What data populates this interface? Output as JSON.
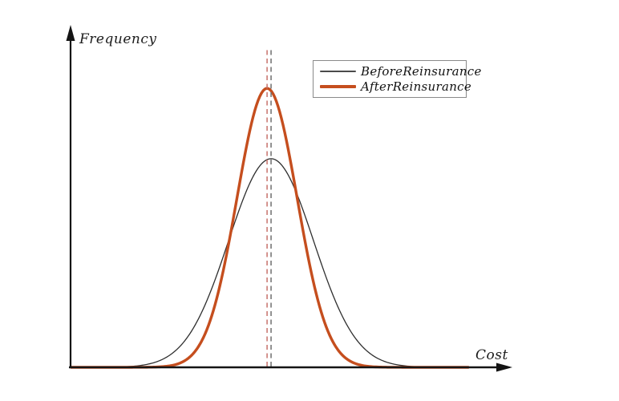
{
  "chart_data": {
    "type": "line",
    "title": "",
    "xlabel": "Cost",
    "ylabel": "Frequency",
    "x_axis": {
      "ticks": [],
      "arrow": true,
      "range": [
        0,
        1
      ]
    },
    "y_axis": {
      "ticks": [],
      "arrow": true,
      "range": [
        0,
        1
      ]
    },
    "axis_color": "#141414",
    "background": "#ffffff",
    "series": [
      {
        "name": "BeforeReinsurance",
        "shape": "gaussian",
        "mean": 0.453,
        "sigma": 0.096,
        "peak": 0.605,
        "color": "#2e2e2e",
        "line_width": 1.3
      },
      {
        "name": "AfterReinsurance",
        "shape": "gaussian",
        "mean": 0.444,
        "sigma": 0.068,
        "peak": 0.809,
        "color": "#c54e1e",
        "line_width": 3.4
      }
    ],
    "mean_markers": [
      {
        "x": 0.444,
        "color": "#c7716b",
        "style": "dashed",
        "top": 0.921
      },
      {
        "x": 0.453,
        "color": "#6e6e6e",
        "style": "dashed",
        "top": 0.921
      }
    ],
    "legend": {
      "position": "upper-right",
      "entries": [
        {
          "label": "BeforeReinsurance",
          "color": "#4a4a4a",
          "line_width": 1.5
        },
        {
          "label": "AfterReinsurance",
          "color": "#c54e1e",
          "line_width": 3.5
        }
      ]
    }
  }
}
